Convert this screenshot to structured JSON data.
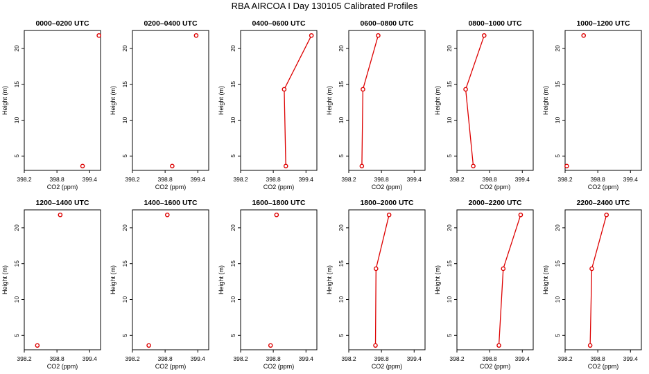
{
  "title": "RBA AIRCOA I  Day 130105  Calibrated Profiles",
  "colors": {
    "series": "#dd0000",
    "axis": "#000000"
  },
  "shared_axes": {
    "xlabel": "CO2 (ppm)",
    "ylabel": "Height (m)",
    "xlim": [
      398.2,
      399.6
    ],
    "ylim": [
      3,
      22.5
    ],
    "xticks": [
      398.2,
      398.8,
      399.4
    ],
    "xtick_labels": [
      "398.2",
      "398.8",
      "399.4"
    ],
    "yticks": [
      5,
      10,
      15,
      20
    ],
    "ytick_labels": [
      "5",
      "10",
      "15",
      "20"
    ]
  },
  "chart_data": [
    {
      "type": "line",
      "title": "0000–0200 UTC",
      "xlabel": "CO2 (ppm)",
      "ylabel": "Height (m)",
      "connected": false,
      "points": [
        {
          "x": 399.27,
          "y": 3.6
        },
        {
          "x": 399.57,
          "y": 21.8
        }
      ]
    },
    {
      "type": "line",
      "title": "0200–0400 UTC",
      "xlabel": "CO2 (ppm)",
      "ylabel": "Height (m)",
      "connected": false,
      "points": [
        {
          "x": 398.93,
          "y": 3.6
        },
        {
          "x": 399.37,
          "y": 21.8
        }
      ]
    },
    {
      "type": "line",
      "title": "0400–0600 UTC",
      "xlabel": "CO2 (ppm)",
      "ylabel": "Height (m)",
      "connected": true,
      "points": [
        {
          "x": 399.03,
          "y": 3.6
        },
        {
          "x": 399.0,
          "y": 14.3
        },
        {
          "x": 399.5,
          "y": 21.8
        }
      ]
    },
    {
      "type": "line",
      "title": "0600–0800 UTC",
      "xlabel": "CO2 (ppm)",
      "ylabel": "Height (m)",
      "connected": true,
      "points": [
        {
          "x": 398.44,
          "y": 3.6
        },
        {
          "x": 398.46,
          "y": 14.3
        },
        {
          "x": 398.74,
          "y": 21.8
        }
      ]
    },
    {
      "type": "line",
      "title": "0800–1000 UTC",
      "xlabel": "CO2 (ppm)",
      "ylabel": "Height (m)",
      "connected": true,
      "points": [
        {
          "x": 398.5,
          "y": 3.6
        },
        {
          "x": 398.36,
          "y": 14.3
        },
        {
          "x": 398.7,
          "y": 21.8
        }
      ]
    },
    {
      "type": "line",
      "title": "1000–1200 UTC",
      "xlabel": "CO2 (ppm)",
      "ylabel": "Height (m)",
      "connected": false,
      "points": [
        {
          "x": 398.23,
          "y": 3.6
        },
        {
          "x": 398.54,
          "y": 21.8
        }
      ]
    },
    {
      "type": "line",
      "title": "1200–1400 UTC",
      "xlabel": "CO2 (ppm)",
      "ylabel": "Height (m)",
      "connected": false,
      "points": [
        {
          "x": 398.44,
          "y": 3.6
        },
        {
          "x": 398.86,
          "y": 21.8
        }
      ]
    },
    {
      "type": "line",
      "title": "1400–1600 UTC",
      "xlabel": "CO2 (ppm)",
      "ylabel": "Height (m)",
      "connected": false,
      "points": [
        {
          "x": 398.5,
          "y": 3.6
        },
        {
          "x": 398.84,
          "y": 21.8
        }
      ]
    },
    {
      "type": "line",
      "title": "1600–1800 UTC",
      "xlabel": "CO2 (ppm)",
      "ylabel": "Height (m)",
      "connected": false,
      "points": [
        {
          "x": 398.75,
          "y": 3.6
        },
        {
          "x": 398.86,
          "y": 21.8
        }
      ]
    },
    {
      "type": "line",
      "title": "1800–2000 UTC",
      "xlabel": "CO2 (ppm)",
      "ylabel": "Height (m)",
      "connected": true,
      "points": [
        {
          "x": 398.69,
          "y": 3.6
        },
        {
          "x": 398.7,
          "y": 14.3
        },
        {
          "x": 398.94,
          "y": 21.8
        }
      ]
    },
    {
      "type": "line",
      "title": "2000–2200 UTC",
      "xlabel": "CO2 (ppm)",
      "ylabel": "Height (m)",
      "connected": true,
      "points": [
        {
          "x": 398.97,
          "y": 3.6
        },
        {
          "x": 399.05,
          "y": 14.3
        },
        {
          "x": 399.37,
          "y": 21.8
        }
      ]
    },
    {
      "type": "line",
      "title": "2200–2400 UTC",
      "xlabel": "CO2 (ppm)",
      "ylabel": "Height (m)",
      "connected": true,
      "points": [
        {
          "x": 398.66,
          "y": 3.6
        },
        {
          "x": 398.69,
          "y": 14.3
        },
        {
          "x": 398.96,
          "y": 21.8
        }
      ]
    }
  ]
}
